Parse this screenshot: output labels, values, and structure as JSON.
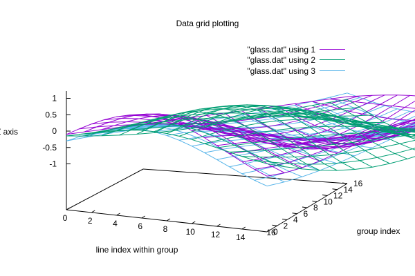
{
  "chart_data": {
    "type": "surface",
    "title": "Data grid plotting",
    "xlabel": "line index within group",
    "ylabel": "group index",
    "zlabel": "Z axis",
    "xlim": [
      0,
      16
    ],
    "ylim": [
      0,
      16
    ],
    "zlim": [
      -1,
      1
    ],
    "x_ticks": [
      "0",
      "2",
      "4",
      "6",
      "8",
      "10",
      "12",
      "14",
      "16"
    ],
    "y_ticks": [
      "0",
      "2",
      "4",
      "6",
      "8",
      "10",
      "12",
      "14",
      "16"
    ],
    "z_ticks": [
      "1",
      "0.5",
      "0",
      "-0.5",
      "-1"
    ],
    "legend_position": "top-right",
    "series": [
      {
        "name": "\"glass.dat\" using 1",
        "color": "#9400d3",
        "style": "mesh",
        "z_range": [
          -0.9,
          1.0
        ]
      },
      {
        "name": "\"glass.dat\" using 2",
        "color": "#009e73",
        "style": "mesh",
        "z_range": [
          -1.0,
          0.9
        ]
      },
      {
        "name": "\"glass.dat\" using 3",
        "color": "#56b4e9",
        "style": "mesh",
        "z_range": [
          -1.0,
          1.0
        ]
      }
    ]
  }
}
